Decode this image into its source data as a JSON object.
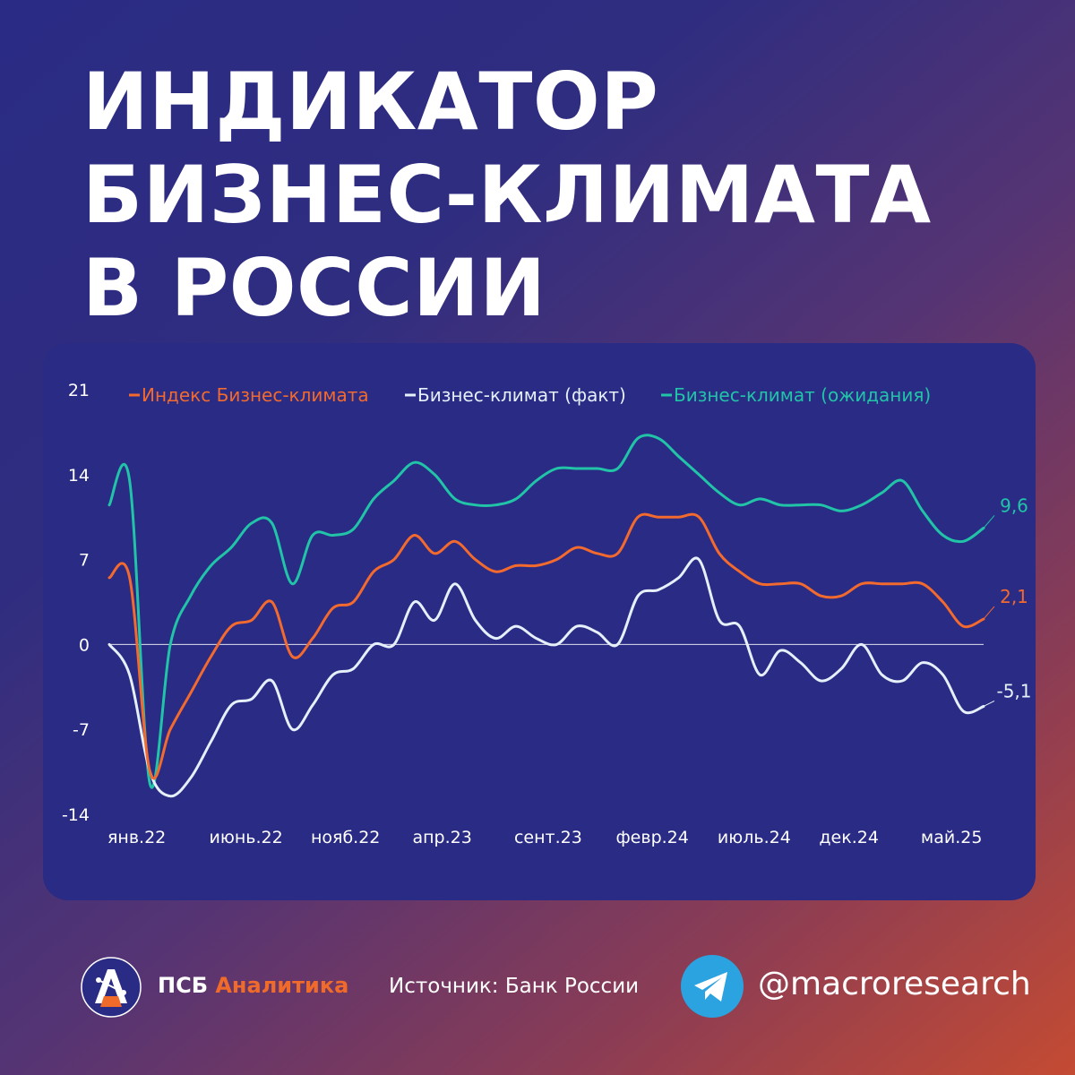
{
  "title": {
    "line1": "ИНДИКАТОР",
    "line2": "БИЗНЕС-КЛИМАТА",
    "line3": "В РОССИИ"
  },
  "footer": {
    "brand_prefix": "ПСБ",
    "brand_accent": "Аналитика",
    "source": "Источник: Банк России",
    "handle": "@macroresearch"
  },
  "icons": {
    "logo": "psb-analytics-logo-icon",
    "telegram": "telegram-icon"
  },
  "chart_data": {
    "type": "line",
    "ylim": [
      -14,
      21
    ],
    "yticks": [
      21,
      14,
      7,
      0,
      -7,
      -14
    ],
    "grid": false,
    "legend_position": "top",
    "x_tick_labels": [
      "янв.22",
      "июнь.22",
      "нояб.22",
      "апр.23",
      "сент.23",
      "февр.24",
      "июль.24",
      "дек.24",
      "май.25"
    ],
    "x_tick_month_index": [
      0,
      5,
      10,
      15,
      20,
      25,
      30,
      35,
      40
    ],
    "months_count": 44,
    "series": [
      {
        "name": "Индекс Бизнес-климата",
        "color": "#f26a2e",
        "end_label": "2,1",
        "values": [
          5.5,
          5.5,
          -10.5,
          -7.0,
          -4.0,
          -1.0,
          1.5,
          2.0,
          3.5,
          -1.0,
          0.5,
          3.0,
          3.5,
          6.0,
          7.0,
          9.0,
          7.5,
          8.5,
          7.0,
          6.0,
          6.5,
          6.5,
          7.0,
          8.0,
          7.5,
          7.5,
          10.5,
          10.5,
          10.5,
          10.5,
          7.5,
          6.0,
          5.0,
          5.0,
          5.0,
          4.0,
          4.0,
          5.0,
          5.0,
          5.0,
          5.0,
          3.5,
          1.5,
          2.1
        ]
      },
      {
        "name": "Бизнес-климат (факт)",
        "color": "#e6f0fa",
        "end_label": "-5,1",
        "values": [
          0.0,
          -2.5,
          -10.5,
          -12.5,
          -11.0,
          -8.0,
          -5.0,
          -4.5,
          -3.0,
          -7.0,
          -5.0,
          -2.5,
          -2.0,
          0.0,
          0.0,
          3.5,
          2.0,
          5.0,
          2.0,
          0.5,
          1.5,
          0.5,
          0.0,
          1.5,
          1.0,
          0.0,
          4.0,
          4.5,
          5.5,
          7.0,
          2.0,
          1.5,
          -2.5,
          -0.5,
          -1.5,
          -3.0,
          -2.0,
          0.0,
          -2.5,
          -3.0,
          -1.5,
          -2.5,
          -5.5,
          -5.1
        ]
      },
      {
        "name": "Бизнес-климат (ожидания)",
        "color": "#22c4a8",
        "end_label": "9,6",
        "values": [
          11.5,
          13.5,
          -11.5,
          0.0,
          4.0,
          6.5,
          8.0,
          10.0,
          10.0,
          5.0,
          9.0,
          9.0,
          9.5,
          12.0,
          13.5,
          15.0,
          14.0,
          12.0,
          11.5,
          11.5,
          12.0,
          13.5,
          14.5,
          14.5,
          14.5,
          14.5,
          17.0,
          17.0,
          15.5,
          14.0,
          12.5,
          11.5,
          12.0,
          11.5,
          11.5,
          11.5,
          11.0,
          11.5,
          12.5,
          13.5,
          11.0,
          9.0,
          8.5,
          9.6
        ]
      }
    ]
  }
}
